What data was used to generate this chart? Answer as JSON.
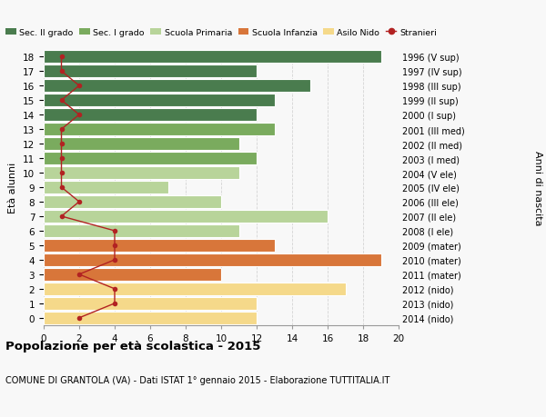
{
  "ages": [
    18,
    17,
    16,
    15,
    14,
    13,
    12,
    11,
    10,
    9,
    8,
    7,
    6,
    5,
    4,
    3,
    2,
    1,
    0
  ],
  "years": [
    "1996 (V sup)",
    "1997 (IV sup)",
    "1998 (III sup)",
    "1999 (II sup)",
    "2000 (I sup)",
    "2001 (III med)",
    "2002 (II med)",
    "2003 (I med)",
    "2004 (V ele)",
    "2005 (IV ele)",
    "2006 (III ele)",
    "2007 (II ele)",
    "2008 (I ele)",
    "2009 (mater)",
    "2010 (mater)",
    "2011 (mater)",
    "2012 (nido)",
    "2013 (nido)",
    "2014 (nido)"
  ],
  "bar_values": [
    19,
    12,
    15,
    13,
    12,
    13,
    11,
    12,
    11,
    7,
    10,
    16,
    11,
    13,
    19,
    10,
    17,
    12,
    12
  ],
  "bar_colors": [
    "#4a7c4e",
    "#4a7c4e",
    "#4a7c4e",
    "#4a7c4e",
    "#4a7c4e",
    "#7aab5e",
    "#7aab5e",
    "#7aab5e",
    "#b8d49a",
    "#b8d49a",
    "#b8d49a",
    "#b8d49a",
    "#b8d49a",
    "#d8763a",
    "#d8763a",
    "#d8763a",
    "#f5d98a",
    "#f5d98a",
    "#f5d98a"
  ],
  "stranieri_values": [
    1,
    1,
    2,
    1,
    2,
    1,
    1,
    1,
    1,
    1,
    2,
    1,
    4,
    4,
    4,
    2,
    4,
    4,
    2
  ],
  "stranieri_color": "#b22222",
  "ylabel_left": "Età alunni",
  "ylabel_right": "Anni di nascita",
  "xlim": [
    0,
    20
  ],
  "xticks": [
    0,
    2,
    4,
    6,
    8,
    10,
    12,
    14,
    16,
    18,
    20
  ],
  "title_bold": "Popolazione per età scolastica - 2015",
  "subtitle": "COMUNE DI GRANTOLA (VA) - Dati ISTAT 1° gennaio 2015 - Elaborazione TUTTITALIA.IT",
  "legend_items": [
    {
      "label": "Sec. II grado",
      "color": "#4a7c4e"
    },
    {
      "label": "Sec. I grado",
      "color": "#7aab5e"
    },
    {
      "label": "Scuola Primaria",
      "color": "#b8d49a"
    },
    {
      "label": "Scuola Infanzia",
      "color": "#d8763a"
    },
    {
      "label": "Asilo Nido",
      "color": "#f5d98a"
    },
    {
      "label": "Stranieri",
      "color": "#b22222"
    }
  ],
  "bg_color": "#f8f8f8",
  "grid_color": "#cccccc"
}
